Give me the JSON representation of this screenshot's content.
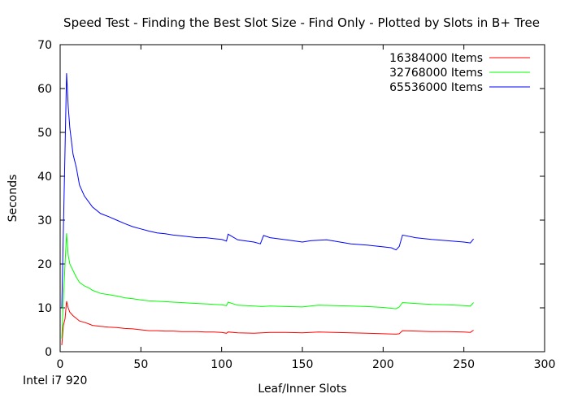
{
  "chart_data": {
    "type": "line",
    "title": "Speed Test - Finding the Best Slot Size - Find Only - Plotted by Slots in B+ Tree",
    "xlabel": "Leaf/Inner Slots",
    "ylabel": "Seconds",
    "footnote": "Intel i7 920",
    "xlim": [
      0,
      300
    ],
    "ylim": [
      0,
      70
    ],
    "xticks": [
      0,
      50,
      100,
      150,
      200,
      250,
      300
    ],
    "yticks": [
      0,
      10,
      20,
      30,
      40,
      50,
      60,
      70
    ],
    "legend_position": "top-right",
    "grid": false,
    "series": [
      {
        "name": "16384000 Items",
        "color": "#ff0000",
        "points": [
          [
            1,
            1.5
          ],
          [
            2,
            6
          ],
          [
            3,
            7.5
          ],
          [
            4,
            11.5
          ],
          [
            5,
            10
          ],
          [
            6,
            9
          ],
          [
            8,
            8.2
          ],
          [
            10,
            7.6
          ],
          [
            12,
            7
          ],
          [
            15,
            6.7
          ],
          [
            18,
            6.3
          ],
          [
            20,
            6
          ],
          [
            25,
            5.8
          ],
          [
            30,
            5.6
          ],
          [
            35,
            5.5
          ],
          [
            40,
            5.3
          ],
          [
            45,
            5.2
          ],
          [
            50,
            5
          ],
          [
            55,
            4.8
          ],
          [
            60,
            4.8
          ],
          [
            65,
            4.7
          ],
          [
            70,
            4.7
          ],
          [
            75,
            4.6
          ],
          [
            80,
            4.6
          ],
          [
            85,
            4.6
          ],
          [
            90,
            4.5
          ],
          [
            95,
            4.5
          ],
          [
            100,
            4.4
          ],
          [
            103,
            4.2
          ],
          [
            104,
            4.5
          ],
          [
            110,
            4.3
          ],
          [
            120,
            4.2
          ],
          [
            125,
            4.3
          ],
          [
            130,
            4.4
          ],
          [
            140,
            4.4
          ],
          [
            150,
            4.3
          ],
          [
            155,
            4.4
          ],
          [
            160,
            4.5
          ],
          [
            170,
            4.4
          ],
          [
            180,
            4.3
          ],
          [
            190,
            4.2
          ],
          [
            200,
            4.1
          ],
          [
            208,
            4
          ],
          [
            210,
            4.1
          ],
          [
            212,
            4.8
          ],
          [
            220,
            4.7
          ],
          [
            230,
            4.6
          ],
          [
            240,
            4.6
          ],
          [
            250,
            4.5
          ],
          [
            254,
            4.4
          ],
          [
            256,
            4.9
          ]
        ]
      },
      {
        "name": "32768000 Items",
        "color": "#00ff00",
        "points": [
          [
            1,
            3
          ],
          [
            2,
            12
          ],
          [
            3,
            20
          ],
          [
            4,
            27
          ],
          [
            5,
            22
          ],
          [
            6,
            20
          ],
          [
            8,
            18.5
          ],
          [
            10,
            17
          ],
          [
            12,
            15.8
          ],
          [
            15,
            15
          ],
          [
            18,
            14.5
          ],
          [
            20,
            14
          ],
          [
            25,
            13.3
          ],
          [
            30,
            13
          ],
          [
            35,
            12.7
          ],
          [
            40,
            12.3
          ],
          [
            45,
            12.1
          ],
          [
            50,
            11.8
          ],
          [
            55,
            11.6
          ],
          [
            60,
            11.5
          ],
          [
            65,
            11.4
          ],
          [
            70,
            11.3
          ],
          [
            75,
            11.2
          ],
          [
            80,
            11.1
          ],
          [
            85,
            11
          ],
          [
            90,
            10.9
          ],
          [
            95,
            10.8
          ],
          [
            100,
            10.7
          ],
          [
            103,
            10.5
          ],
          [
            104,
            11.3
          ],
          [
            110,
            10.6
          ],
          [
            120,
            10.4
          ],
          [
            125,
            10.3
          ],
          [
            130,
            10.4
          ],
          [
            140,
            10.3
          ],
          [
            150,
            10.2
          ],
          [
            155,
            10.4
          ],
          [
            160,
            10.6
          ],
          [
            170,
            10.5
          ],
          [
            180,
            10.4
          ],
          [
            190,
            10.3
          ],
          [
            200,
            10.1
          ],
          [
            208,
            9.8
          ],
          [
            210,
            10.2
          ],
          [
            212,
            11.2
          ],
          [
            220,
            11
          ],
          [
            230,
            10.8
          ],
          [
            240,
            10.7
          ],
          [
            250,
            10.5
          ],
          [
            254,
            10.4
          ],
          [
            256,
            11.2
          ]
        ]
      },
      {
        "name": "65536000 Items",
        "color": "#0000ff",
        "points": [
          [
            1,
            10
          ],
          [
            2,
            28
          ],
          [
            3,
            46
          ],
          [
            4,
            63.5
          ],
          [
            5,
            56
          ],
          [
            6,
            51
          ],
          [
            8,
            45
          ],
          [
            10,
            42
          ],
          [
            12,
            38
          ],
          [
            15,
            35.5
          ],
          [
            18,
            34
          ],
          [
            20,
            33
          ],
          [
            25,
            31.5
          ],
          [
            30,
            30.8
          ],
          [
            35,
            30
          ],
          [
            40,
            29.2
          ],
          [
            45,
            28.5
          ],
          [
            50,
            28
          ],
          [
            55,
            27.5
          ],
          [
            60,
            27.1
          ],
          [
            65,
            26.9
          ],
          [
            70,
            26.6
          ],
          [
            75,
            26.4
          ],
          [
            80,
            26.2
          ],
          [
            85,
            26
          ],
          [
            90,
            26
          ],
          [
            95,
            25.8
          ],
          [
            100,
            25.6
          ],
          [
            103,
            25.2
          ],
          [
            104,
            26.8
          ],
          [
            110,
            25.5
          ],
          [
            120,
            25
          ],
          [
            124,
            24.6
          ],
          [
            126,
            26.5
          ],
          [
            130,
            26
          ],
          [
            140,
            25.5
          ],
          [
            150,
            25
          ],
          [
            155,
            25.3
          ],
          [
            160,
            25.4
          ],
          [
            165,
            25.5
          ],
          [
            170,
            25.2
          ],
          [
            180,
            24.6
          ],
          [
            190,
            24.3
          ],
          [
            200,
            23.9
          ],
          [
            205,
            23.7
          ],
          [
            208,
            23.2
          ],
          [
            210,
            24
          ],
          [
            212,
            26.6
          ],
          [
            220,
            26
          ],
          [
            230,
            25.6
          ],
          [
            240,
            25.3
          ],
          [
            250,
            25
          ],
          [
            254,
            24.8
          ],
          [
            256,
            25.7
          ]
        ]
      }
    ]
  }
}
